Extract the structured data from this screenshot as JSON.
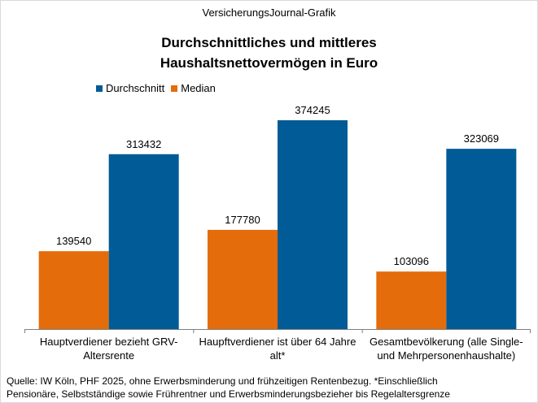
{
  "header": {
    "source_title": "VersicherungsJournal-Grafik"
  },
  "chart_data": {
    "type": "bar",
    "title": "Durchschnittliches und mittleres Haushaltsnettovermögen in Euro",
    "title_lines": [
      "Durchschnittliches und mittleres",
      "Haushaltsnettovermögen in Euro"
    ],
    "categories": [
      [
        "Hauptverdiener bezieht GRV-",
        "Altersrente"
      ],
      [
        "Haupftverdiener ist über 64 Jahre",
        "alt*"
      ],
      [
        "Gesamtbevölkerung (alle Single-",
        "und Mehrpersonenhaushalte)"
      ]
    ],
    "series": [
      {
        "name": "Median",
        "color": "#e46c0a",
        "values": [
          139540,
          177780,
          103096
        ]
      },
      {
        "name": "Durchschnitt",
        "color": "#005b96",
        "values": [
          313432,
          374245,
          323069
        ]
      }
    ],
    "legend": [
      {
        "name": "Durchschnitt",
        "color": "#005b96"
      },
      {
        "name": "Median",
        "color": "#e46c0a"
      }
    ],
    "legend_position": "top-left",
    "ylim": [
      0,
      400000
    ],
    "grid": false,
    "xlabel": "",
    "ylabel": ""
  },
  "footnote": {
    "lines": [
      "Quelle: IW Köln, PHF 2025, ohne Erwerbsminderung und frühzeitigen Rentenbezug. *Einschließlich",
      "Pensionäre, Selbstständige sowie Frührentner und Erwerbsminderungsbezieher bis Regelaltersgrenze"
    ]
  }
}
